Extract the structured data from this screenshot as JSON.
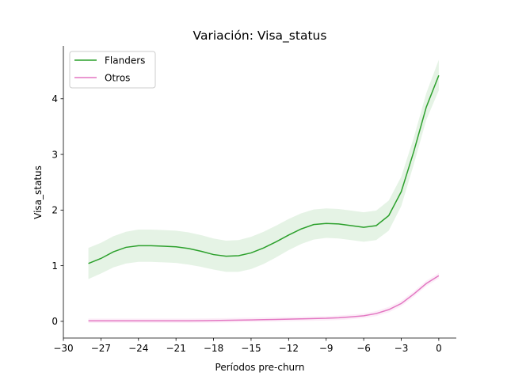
{
  "chart_data": {
    "type": "line",
    "title": "Variación: Visa_status",
    "xlabel": "Períodos pre-churn",
    "ylabel": "Visa_status",
    "xlim": [
      -30,
      1.4
    ],
    "ylim": [
      -0.3,
      4.95
    ],
    "xticks": [
      -30,
      -27,
      -24,
      -21,
      -18,
      -15,
      -12,
      -9,
      -6,
      -3,
      0
    ],
    "yticks": [
      0,
      1,
      2,
      3,
      4
    ],
    "grid": false,
    "legend_position": "upper-left",
    "x": [
      -28,
      -27,
      -26,
      -25,
      -24,
      -23,
      -22,
      -21,
      -20,
      -19,
      -18,
      -17,
      -16,
      -15,
      -14,
      -13,
      -12,
      -11,
      -10,
      -9,
      -8,
      -7,
      -6,
      -5,
      -4,
      -3,
      -2,
      -1,
      0
    ],
    "series": [
      {
        "name": "Flanders",
        "color": "#2ca02c",
        "values": [
          1.04,
          1.13,
          1.25,
          1.33,
          1.36,
          1.36,
          1.35,
          1.34,
          1.31,
          1.26,
          1.2,
          1.17,
          1.18,
          1.23,
          1.32,
          1.43,
          1.55,
          1.66,
          1.74,
          1.76,
          1.75,
          1.72,
          1.69,
          1.72,
          1.9,
          2.33,
          3.05,
          3.85,
          4.42
        ],
        "ci_lower": [
          0.76,
          0.86,
          0.97,
          1.04,
          1.07,
          1.07,
          1.06,
          1.05,
          1.02,
          0.98,
          0.93,
          0.89,
          0.89,
          0.94,
          1.03,
          1.15,
          1.28,
          1.39,
          1.47,
          1.5,
          1.49,
          1.46,
          1.43,
          1.46,
          1.63,
          2.07,
          2.82,
          3.62,
          4.15
        ],
        "ci_upper": [
          1.32,
          1.41,
          1.53,
          1.61,
          1.65,
          1.65,
          1.64,
          1.63,
          1.6,
          1.55,
          1.49,
          1.45,
          1.46,
          1.52,
          1.61,
          1.72,
          1.84,
          1.94,
          2.01,
          2.03,
          2.02,
          1.99,
          1.96,
          1.99,
          2.17,
          2.6,
          3.3,
          4.1,
          4.7
        ]
      },
      {
        "name": "Otros",
        "color": "#e377c2",
        "values": [
          0.01,
          0.01,
          0.01,
          0.01,
          0.01,
          0.01,
          0.01,
          0.01,
          0.01,
          0.012,
          0.015,
          0.018,
          0.022,
          0.026,
          0.03,
          0.035,
          0.04,
          0.045,
          0.05,
          0.055,
          0.065,
          0.08,
          0.1,
          0.14,
          0.21,
          0.32,
          0.49,
          0.68,
          0.82
        ],
        "ci_lower": [
          -0.03,
          -0.03,
          -0.03,
          -0.03,
          -0.03,
          -0.03,
          -0.03,
          -0.03,
          -0.03,
          -0.027,
          -0.024,
          -0.021,
          -0.017,
          -0.013,
          -0.009,
          -0.004,
          0.0,
          0.005,
          0.01,
          0.015,
          0.024,
          0.038,
          0.057,
          0.095,
          0.16,
          0.27,
          0.44,
          0.63,
          0.77
        ],
        "ci_upper": [
          0.05,
          0.05,
          0.05,
          0.05,
          0.05,
          0.05,
          0.05,
          0.05,
          0.05,
          0.052,
          0.055,
          0.058,
          0.062,
          0.066,
          0.07,
          0.075,
          0.08,
          0.085,
          0.09,
          0.095,
          0.106,
          0.122,
          0.143,
          0.185,
          0.26,
          0.37,
          0.54,
          0.73,
          0.87
        ]
      }
    ]
  }
}
